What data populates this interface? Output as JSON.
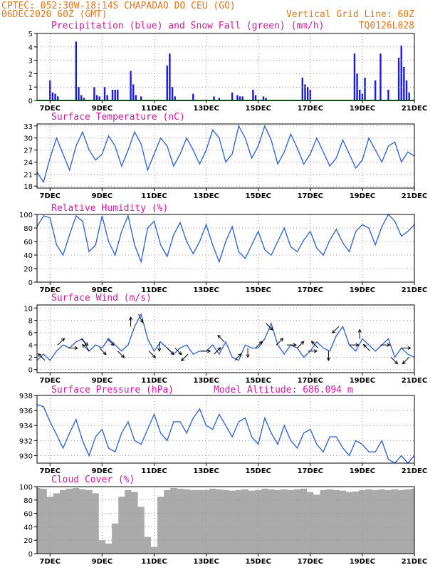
{
  "header": {
    "line1": "CPTEC:   052:30W-18:14S   CHAPADAO DO CEU (GO)",
    "line2_left": "06DEC2020 60Z (GMT)",
    "line2_right": "Vertical Grid Line: 60Z",
    "line3_right": "TQ0126L028"
  },
  "colors": {
    "header": "#e8741a",
    "panel_title": "#e0139a",
    "precip": "#1a1ae6",
    "snow": "#1a9a1a",
    "line": "#3366dd",
    "wind_arrow": "#000000",
    "cloud": "#aaaaaa"
  },
  "x_axis": {
    "start_day": 6.5,
    "end_day": 21,
    "ticks": [
      7,
      9,
      11,
      13,
      15,
      17,
      19,
      21
    ],
    "tick_labels": [
      "7DEC",
      "9DEC",
      "11DEC",
      "13DEC",
      "15DEC",
      "17DEC",
      "19DEC",
      "21DEC"
    ]
  },
  "chart_data": [
    {
      "type": "bar",
      "title": "Precipitation (blue) and Snow Fall (green) (mm/h)",
      "ylim": [
        0,
        5
      ],
      "yticks": [
        0,
        1,
        2,
        3,
        4,
        5
      ],
      "grid": true,
      "x_unit": "day of December 2020",
      "series": [
        {
          "name": "Precipitation",
          "x": [
            7.0,
            7.1,
            7.2,
            7.3,
            8.0,
            8.1,
            8.2,
            8.3,
            8.7,
            8.8,
            8.9,
            9.1,
            9.2,
            9.4,
            9.5,
            9.6,
            10.1,
            10.2,
            10.3,
            10.5,
            11.5,
            11.6,
            11.7,
            11.8,
            12.5,
            13.3,
            13.5,
            14.0,
            14.2,
            14.3,
            14.4,
            14.8,
            14.9,
            15.2,
            15.3,
            16.7,
            16.8,
            16.9,
            17.0,
            18.7,
            18.8,
            18.9,
            19.0,
            19.1,
            19.5,
            19.7,
            20.0,
            20.4,
            20.5,
            20.6,
            20.7,
            20.8
          ],
          "values": [
            1.5,
            0.6,
            0.5,
            0.3,
            4.4,
            1.0,
            0.4,
            0.2,
            1.0,
            0.4,
            0.3,
            1.0,
            0.4,
            0.8,
            0.8,
            0.8,
            2.2,
            1.2,
            0.4,
            0.3,
            2.6,
            3.5,
            1.0,
            0.3,
            0.5,
            0.3,
            0.2,
            0.6,
            0.4,
            0.3,
            0.3,
            0.8,
            0.4,
            0.3,
            0.2,
            1.7,
            1.2,
            1.0,
            0.8,
            3.5,
            2.0,
            0.8,
            0.5,
            1.7,
            1.5,
            3.5,
            0.8,
            3.2,
            4.1,
            2.5,
            1.5,
            0.6
          ]
        },
        {
          "name": "Snow Fall",
          "x": [
            6.5,
            21.0
          ],
          "values": [
            0,
            0
          ]
        }
      ]
    },
    {
      "type": "line",
      "title": "Surface Temperature (nC)",
      "ylim": [
        17.5,
        33.5
      ],
      "yticks": [
        18,
        21,
        24,
        27,
        30,
        33
      ],
      "grid": true,
      "x": [
        6.5,
        6.75,
        7.0,
        7.25,
        7.5,
        7.75,
        8.0,
        8.25,
        8.5,
        8.75,
        9.0,
        9.25,
        9.5,
        9.75,
        10.0,
        10.25,
        10.5,
        10.75,
        11.0,
        11.25,
        11.5,
        11.75,
        12.0,
        12.25,
        12.5,
        12.75,
        13.0,
        13.25,
        13.5,
        13.75,
        14.0,
        14.25,
        14.5,
        14.75,
        15.0,
        15.25,
        15.5,
        15.75,
        16.0,
        16.25,
        16.5,
        16.75,
        17.0,
        17.25,
        17.5,
        17.75,
        18.0,
        18.25,
        18.5,
        18.75,
        19.0,
        19.25,
        19.5,
        19.75,
        20.0,
        20.25,
        20.5,
        20.75,
        21.0
      ],
      "series": [
        {
          "values": [
            21.5,
            19.0,
            25.0,
            30.0,
            26.0,
            22.0,
            28.0,
            31.5,
            27.0,
            24.5,
            26.0,
            30.5,
            28.0,
            23.0,
            27.0,
            31.5,
            28.5,
            22.0,
            26.0,
            30.0,
            28.0,
            23.0,
            26.0,
            30.0,
            27.0,
            23.5,
            27.0,
            32.0,
            30.0,
            24.0,
            26.0,
            33.0,
            30.0,
            25.0,
            28.0,
            33.0,
            29.5,
            23.5,
            26.5,
            31.0,
            27.5,
            23.5,
            26.0,
            30.0,
            26.5,
            23.0,
            25.0,
            29.5,
            26.0,
            22.5,
            24.5,
            30.0,
            27.0,
            24.0,
            28.0,
            29.0,
            24.0,
            26.5,
            25.5
          ]
        }
      ]
    },
    {
      "type": "line",
      "title": "Relative Humidity (%)",
      "ylim": [
        0,
        100
      ],
      "yticks": [
        0,
        20,
        40,
        60,
        80,
        100
      ],
      "grid": true,
      "x": [
        6.5,
        6.75,
        7.0,
        7.25,
        7.5,
        7.75,
        8.0,
        8.25,
        8.5,
        8.75,
        9.0,
        9.25,
        9.5,
        9.75,
        10.0,
        10.25,
        10.5,
        10.75,
        11.0,
        11.25,
        11.5,
        11.75,
        12.0,
        12.25,
        12.5,
        12.75,
        13.0,
        13.25,
        13.5,
        13.75,
        14.0,
        14.25,
        14.5,
        14.75,
        15.0,
        15.25,
        15.5,
        15.75,
        16.0,
        16.25,
        16.5,
        16.75,
        17.0,
        17.25,
        17.5,
        17.75,
        18.0,
        18.25,
        18.5,
        18.75,
        19.0,
        19.25,
        19.5,
        19.75,
        20.0,
        20.25,
        20.5,
        20.75,
        21.0
      ],
      "series": [
        {
          "values": [
            82,
            98,
            95,
            55,
            40,
            70,
            98,
            90,
            45,
            55,
            98,
            60,
            40,
            75,
            98,
            55,
            30,
            80,
            90,
            55,
            38,
            70,
            88,
            60,
            42,
            60,
            85,
            55,
            30,
            60,
            82,
            45,
            35,
            55,
            75,
            48,
            40,
            60,
            80,
            52,
            45,
            62,
            75,
            50,
            40,
            62,
            78,
            58,
            45,
            75,
            85,
            80,
            55,
            82,
            100,
            90,
            68,
            75,
            85
          ]
        }
      ]
    },
    {
      "type": "line",
      "title": "Surface Wind (m/s)",
      "ylim": [
        -0.5,
        10.5
      ],
      "yticks": [
        0,
        2,
        4,
        6,
        8,
        10
      ],
      "grid": true,
      "x": [
        6.5,
        6.75,
        7.0,
        7.25,
        7.5,
        7.75,
        8.0,
        8.25,
        8.5,
        8.75,
        9.0,
        9.25,
        9.5,
        9.75,
        10.0,
        10.25,
        10.5,
        10.75,
        11.0,
        11.25,
        11.5,
        11.75,
        12.0,
        12.25,
        12.5,
        12.75,
        13.0,
        13.25,
        13.5,
        13.75,
        14.0,
        14.25,
        14.5,
        14.75,
        15.0,
        15.25,
        15.5,
        15.75,
        16.0,
        16.25,
        16.5,
        16.75,
        17.0,
        17.25,
        17.5,
        17.75,
        18.0,
        18.25,
        18.5,
        18.75,
        19.0,
        19.25,
        19.5,
        19.75,
        20.0,
        20.25,
        20.5,
        20.75,
        21.0
      ],
      "series": [
        {
          "values": [
            1.5,
            2.5,
            1.5,
            3.0,
            4.0,
            3.5,
            4.5,
            5.0,
            3.0,
            4.0,
            3.5,
            5.0,
            4.0,
            3.0,
            4.0,
            7.0,
            9.0,
            5.0,
            3.0,
            4.5,
            3.5,
            2.5,
            3.5,
            4.0,
            2.5,
            3.0,
            3.0,
            4.0,
            2.5,
            4.5,
            2.0,
            1.5,
            4.0,
            3.5,
            3.5,
            5.0,
            7.5,
            4.0,
            2.5,
            4.0,
            3.5,
            2.0,
            3.0,
            4.5,
            3.5,
            3.0,
            5.5,
            7.0,
            4.0,
            3.0,
            5.0,
            4.0,
            3.0,
            4.0,
            5.0,
            2.0,
            3.5,
            2.5,
            2.0
          ]
        }
      ],
      "arrows": [
        {
          "x": 6.8,
          "u": -1,
          "v": 1
        },
        {
          "x": 7.3,
          "u": 1,
          "v": 1
        },
        {
          "x": 7.7,
          "u": 1,
          "v": 0
        },
        {
          "x": 8.2,
          "u": 1,
          "v": -1
        },
        {
          "x": 8.5,
          "u": -1,
          "v": 1
        },
        {
          "x": 8.9,
          "u": 1,
          "v": -1
        },
        {
          "x": 9.2,
          "u": 1,
          "v": -1
        },
        {
          "x": 9.6,
          "u": 1,
          "v": -1
        },
        {
          "x": 10.1,
          "u": 0,
          "v": 1
        },
        {
          "x": 10.4,
          "u": 1,
          "v": -2
        },
        {
          "x": 10.8,
          "u": 1,
          "v": -1
        },
        {
          "x": 11.2,
          "u": 0,
          "v": -1
        },
        {
          "x": 11.5,
          "u": 1,
          "v": -1
        },
        {
          "x": 11.8,
          "u": 1,
          "v": -1
        },
        {
          "x": 12.3,
          "u": -1,
          "v": -1
        },
        {
          "x": 12.8,
          "u": 1,
          "v": 0
        },
        {
          "x": 13.3,
          "u": 1,
          "v": 1
        },
        {
          "x": 13.7,
          "u": -1,
          "v": 1
        },
        {
          "x": 14.1,
          "u": 1,
          "v": 1
        },
        {
          "x": 14.6,
          "u": 0,
          "v": -1
        },
        {
          "x": 14.9,
          "u": 1,
          "v": 1
        },
        {
          "x": 15.3,
          "u": 1,
          "v": -1
        },
        {
          "x": 15.7,
          "u": 1,
          "v": 1
        },
        {
          "x": 16.1,
          "u": 1,
          "v": 0
        },
        {
          "x": 16.5,
          "u": 1,
          "v": 1
        },
        {
          "x": 16.9,
          "u": 1,
          "v": 0
        },
        {
          "x": 17.3,
          "u": -1,
          "v": 1
        },
        {
          "x": 17.7,
          "u": 0,
          "v": -1
        },
        {
          "x": 18.1,
          "u": -1,
          "v": -1
        },
        {
          "x": 18.5,
          "u": 1,
          "v": 0
        },
        {
          "x": 18.9,
          "u": 0,
          "v": 1
        },
        {
          "x": 19.3,
          "u": -1,
          "v": 1
        },
        {
          "x": 19.7,
          "u": 1,
          "v": 0
        },
        {
          "x": 20.1,
          "u": 1,
          "v": -1
        },
        {
          "x": 20.5,
          "u": 1,
          "v": 0
        },
        {
          "x": 20.8,
          "u": -1,
          "v": -1
        }
      ]
    },
    {
      "type": "line",
      "title": "Surface Pressure (hPa)",
      "annotation": "Model Altitude: 686.094 m",
      "ylim": [
        929,
        938
      ],
      "yticks": [
        930,
        932,
        934,
        936,
        938
      ],
      "grid": true,
      "x": [
        6.5,
        6.75,
        7.0,
        7.25,
        7.5,
        7.75,
        8.0,
        8.25,
        8.5,
        8.75,
        9.0,
        9.25,
        9.5,
        9.75,
        10.0,
        10.25,
        10.5,
        10.75,
        11.0,
        11.25,
        11.5,
        11.75,
        12.0,
        12.25,
        12.5,
        12.75,
        13.0,
        13.25,
        13.5,
        13.75,
        14.0,
        14.25,
        14.5,
        14.75,
        15.0,
        15.25,
        15.5,
        15.75,
        16.0,
        16.25,
        16.5,
        16.75,
        17.0,
        17.25,
        17.5,
        17.75,
        18.0,
        18.25,
        18.5,
        18.75,
        19.0,
        19.25,
        19.5,
        19.75,
        20.0,
        20.25,
        20.5,
        20.75,
        21.0
      ],
      "series": [
        {
          "values": [
            936.8,
            936.5,
            934.5,
            932.8,
            931.0,
            933.0,
            934.8,
            932.0,
            930.0,
            932.5,
            933.5,
            931.0,
            930.5,
            933.0,
            934.5,
            932.0,
            931.5,
            933.5,
            935.5,
            933.0,
            932.0,
            934.5,
            934.5,
            933.0,
            935.0,
            936.2,
            934.0,
            933.5,
            935.5,
            934.0,
            932.5,
            934.5,
            935.0,
            932.5,
            931.5,
            935.0,
            933.0,
            931.5,
            934.0,
            932.0,
            931.0,
            933.0,
            933.5,
            931.5,
            930.5,
            932.5,
            932.5,
            931.0,
            930.0,
            932.0,
            931.5,
            930.5,
            930.5,
            932.0,
            929.5,
            929.0,
            930.0,
            929.0,
            930.0
          ]
        }
      ]
    },
    {
      "type": "area",
      "title": "Cloud Cover (%)",
      "ylim": [
        0,
        100
      ],
      "yticks": [
        0,
        20,
        40,
        60,
        80,
        100
      ],
      "grid": true,
      "x": [
        6.5,
        6.75,
        7.0,
        7.25,
        7.5,
        7.75,
        8.0,
        8.25,
        8.5,
        8.75,
        9.0,
        9.25,
        9.5,
        9.75,
        10.0,
        10.25,
        10.5,
        10.75,
        11.0,
        11.25,
        11.5,
        11.75,
        12.0,
        12.25,
        12.5,
        12.75,
        13.0,
        13.25,
        13.5,
        13.75,
        14.0,
        14.25,
        14.5,
        14.75,
        15.0,
        15.25,
        15.5,
        15.75,
        16.0,
        16.25,
        16.5,
        16.75,
        17.0,
        17.25,
        17.5,
        17.75,
        18.0,
        18.25,
        18.5,
        18.75,
        19.0,
        19.25,
        19.5,
        19.75,
        20.0,
        20.25,
        20.5,
        20.75,
        21.0
      ],
      "series": [
        {
          "name": "Cloud Cover",
          "values": [
            98,
            97,
            85,
            90,
            95,
            97,
            98,
            96,
            95,
            90,
            20,
            15,
            45,
            85,
            95,
            92,
            70,
            25,
            10,
            85,
            95,
            98,
            97,
            96,
            95,
            95,
            95,
            97,
            96,
            95,
            94,
            95,
            96,
            94,
            95,
            97,
            96,
            95,
            96,
            95,
            96,
            97,
            92,
            88,
            95,
            96,
            95,
            94,
            92,
            93,
            95,
            96,
            95,
            96,
            95,
            96,
            95,
            96,
            97
          ]
        }
      ]
    }
  ]
}
